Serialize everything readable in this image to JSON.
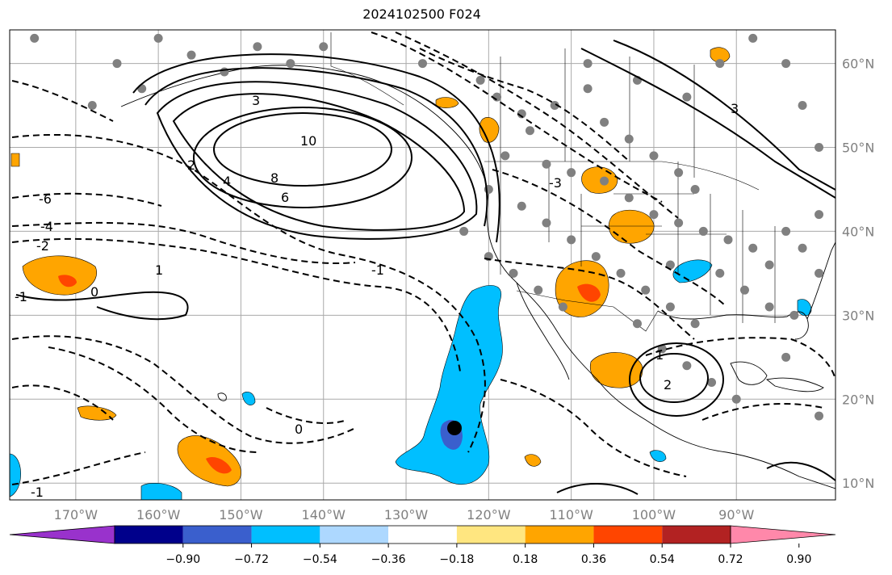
{
  "title": "2024102500 F024",
  "axes": {
    "lon_labels": [
      "170°W",
      "160°W",
      "150°W",
      "140°W",
      "130°W",
      "120°W",
      "110°W",
      "100°W",
      "90°W"
    ],
    "lat_labels": [
      "60°N",
      "50°N",
      "40°N",
      "30°N",
      "20°N",
      "10°N"
    ],
    "lon_range": [
      -178,
      -78
    ],
    "lat_range": [
      8,
      64
    ]
  },
  "contour_labels": [
    "10",
    "8",
    "6",
    "4",
    "3",
    "2",
    "1",
    "0",
    "-1",
    "-2",
    "-3",
    "-4",
    "-6",
    "0",
    "-1",
    "1",
    "2",
    "3",
    "-1"
  ],
  "colorbar": {
    "ticks": [
      "−0.90",
      "−0.72",
      "−0.54",
      "−0.36",
      "−0.18",
      "0.18",
      "0.36",
      "0.54",
      "0.72",
      "0.90"
    ],
    "colors": [
      "#9932CC",
      "#00008B",
      "#3A5FCD",
      "#00BFFF",
      "#ADD8FF",
      "#FFFFFF",
      "#FFE680",
      "#FFA500",
      "#FF4500",
      "#B22222",
      "#FF88AA"
    ]
  },
  "colors": {
    "positive_fill": "#FFA500",
    "strong_positive_fill": "#FF4500",
    "negative_fill": "#00BFFF",
    "strong_negative_fill": "#3A5FCD",
    "station_dot": "#808080",
    "grid": "#AAAAAA",
    "tick_label": "#808080"
  },
  "marker": {
    "name": "black-dot",
    "lon": -126,
    "lat": 16.5
  }
}
